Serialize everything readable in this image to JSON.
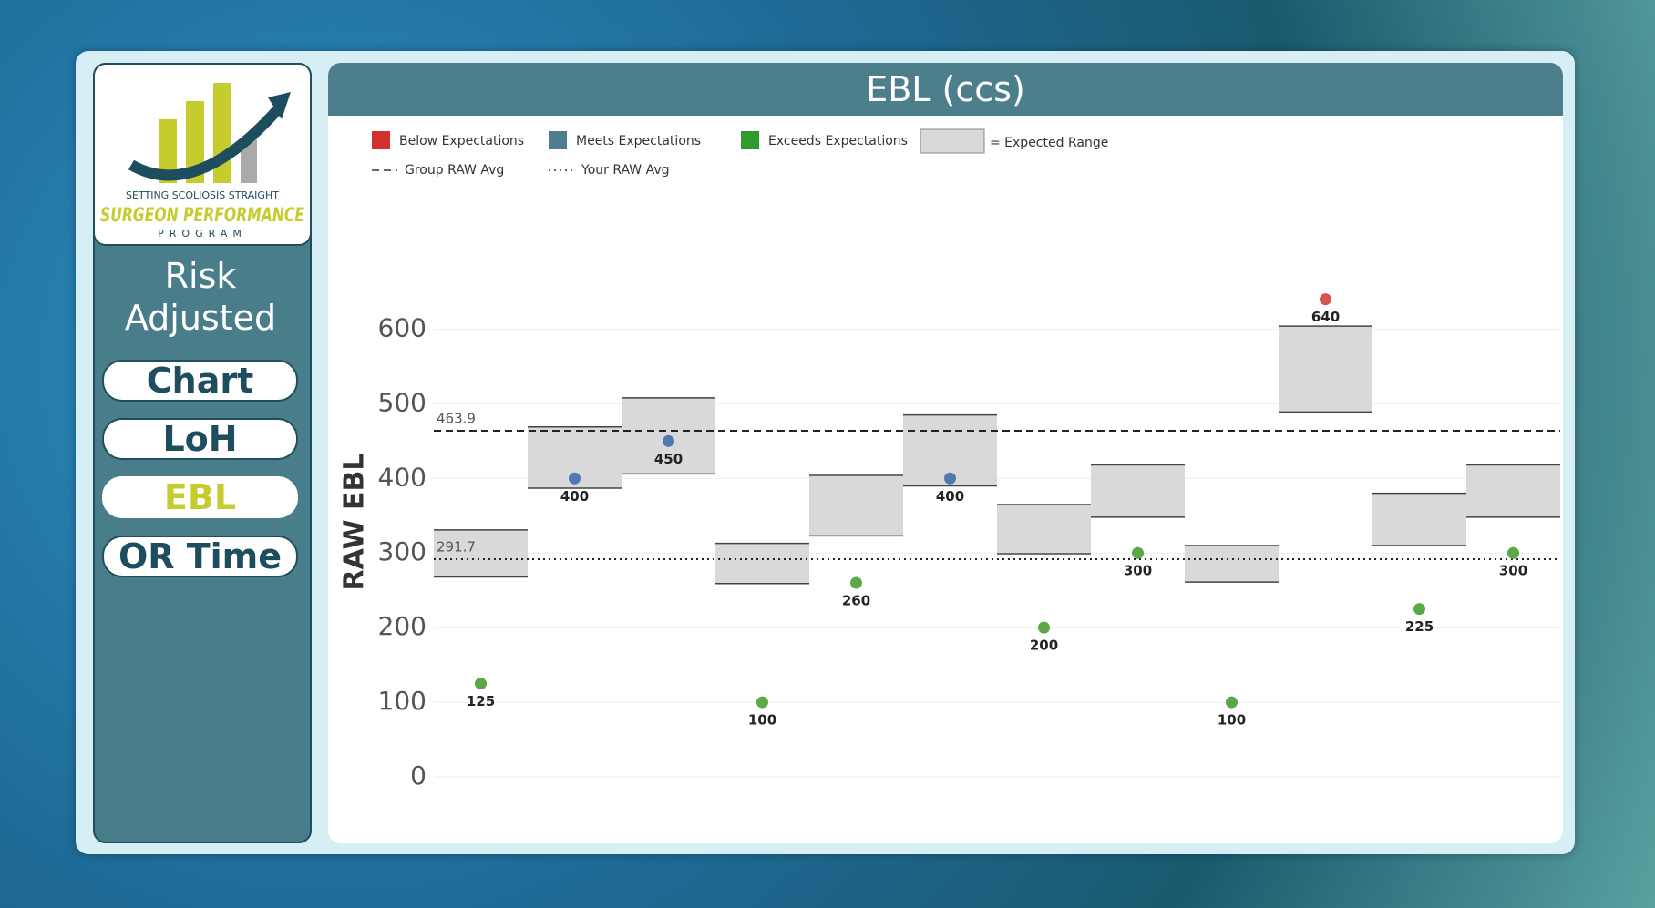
{
  "sidebar": {
    "logo": {
      "tagline": "SETTING SCOLIOSIS STRAIGHT",
      "name": "SURGEON PERFORMANCE",
      "program": "PROGRAM"
    },
    "heading": "Risk Adjusted",
    "buttons": [
      "Chart",
      "LoH",
      "EBL",
      "OR Time"
    ],
    "active": 2
  },
  "chart_data": {
    "type": "range_dot",
    "title": "EBL (ccs)",
    "y_label": "RAW EBL",
    "ylim": [
      0,
      675
    ],
    "yticks": [
      0,
      100,
      200,
      300,
      400,
      500,
      600
    ],
    "grid": true,
    "categories": [
      null,
      null,
      null,
      null,
      null,
      null,
      null,
      null,
      null,
      null,
      null,
      null
    ],
    "values": [
      125,
      400,
      450,
      100,
      260,
      400,
      200,
      300,
      100,
      640,
      225,
      300
    ],
    "point_colors": [
      "#5aa846",
      "#4f7ab0",
      "#4f7ab0",
      "#5aa846",
      "#5aa846",
      "#4f7ab0",
      "#5aa846",
      "#5aa846",
      "#5aa846",
      "#d9534f",
      "#5aa846",
      "#5aa846"
    ],
    "range_low": [
      268,
      387,
      406,
      259,
      323,
      390,
      299,
      348,
      261,
      489,
      310,
      348
    ],
    "range_high": [
      331,
      469,
      508,
      313,
      404,
      485,
      365,
      418,
      310,
      604,
      380,
      418
    ],
    "range_color": "#d9d9d9",
    "reference_lines": [
      {
        "label": "Group RAW Avg",
        "value": 463.9,
        "style": "dashed"
      },
      {
        "label": "Your RAW Avg",
        "value": 291.7,
        "style": "dotted"
      }
    ],
    "legend": [
      {
        "name": "Below Expectations",
        "color": "#d32f2f"
      },
      {
        "name": "Meets Expectations",
        "color": "#4f7f8e"
      },
      {
        "name": "Exceeds Expectations",
        "color": "#2e9b2e"
      }
    ],
    "range_legend": "= Expected Range"
  }
}
